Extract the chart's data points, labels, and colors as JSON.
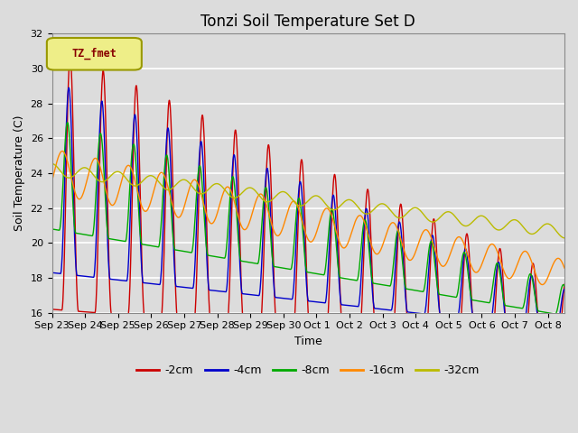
{
  "title": "Tonzi Soil Temperature Set D",
  "xlabel": "Time",
  "ylabel": "Soil Temperature (C)",
  "legend_label": "TZ_fmet",
  "series_labels": [
    "-2cm",
    "-4cm",
    "-8cm",
    "-16cm",
    "-32cm"
  ],
  "series_colors": [
    "#cc0000",
    "#0000cc",
    "#00aa00",
    "#ff8800",
    "#bbbb00"
  ],
  "ylim": [
    16,
    32
  ],
  "plot_bg_color": "#dcdcdc",
  "fig_bg_color": "#dcdcdc",
  "xtick_labels": [
    "Sep 23",
    "Sep 24",
    "Sep 25",
    "Sep 26",
    "Sep 27",
    "Sep 28",
    "Sep 29",
    "Sep 30",
    "Oct 1",
    "Oct 2",
    "Oct 3",
    "Oct 4",
    "Oct 5",
    "Oct 6",
    "Oct 7",
    "Oct 8"
  ],
  "ytick_labels": [
    "16",
    "18",
    "20",
    "22",
    "24",
    "26",
    "28",
    "30",
    "32"
  ],
  "ytick_vals": [
    16,
    18,
    20,
    22,
    24,
    26,
    28,
    30,
    32
  ],
  "title_fontsize": 12,
  "axis_label_fontsize": 9,
  "tick_fontsize": 8
}
